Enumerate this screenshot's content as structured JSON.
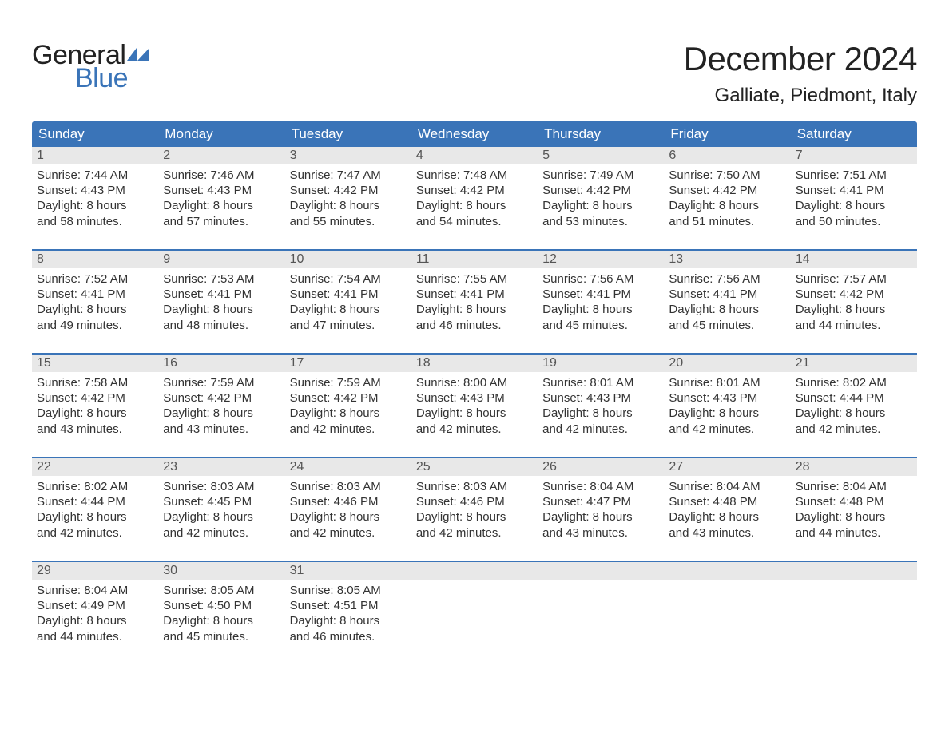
{
  "logo": {
    "line1": "General",
    "line2": "Blue",
    "color_general": "#222222",
    "color_blue": "#3a74b8",
    "icon_color": "#3a74b8"
  },
  "title": "December 2024",
  "location": "Galliate, Piedmont, Italy",
  "colors": {
    "header_bg": "#3a74b8",
    "header_text": "#ffffff",
    "daynum_bg": "#e8e8e8",
    "week_border": "#3a74b8",
    "text": "#333333"
  },
  "day_names": [
    "Sunday",
    "Monday",
    "Tuesday",
    "Wednesday",
    "Thursday",
    "Friday",
    "Saturday"
  ],
  "weeks": [
    [
      {
        "n": "1",
        "sunrise": "Sunrise: 7:44 AM",
        "sunset": "Sunset: 4:43 PM",
        "dl1": "Daylight: 8 hours",
        "dl2": "and 58 minutes."
      },
      {
        "n": "2",
        "sunrise": "Sunrise: 7:46 AM",
        "sunset": "Sunset: 4:43 PM",
        "dl1": "Daylight: 8 hours",
        "dl2": "and 57 minutes."
      },
      {
        "n": "3",
        "sunrise": "Sunrise: 7:47 AM",
        "sunset": "Sunset: 4:42 PM",
        "dl1": "Daylight: 8 hours",
        "dl2": "and 55 minutes."
      },
      {
        "n": "4",
        "sunrise": "Sunrise: 7:48 AM",
        "sunset": "Sunset: 4:42 PM",
        "dl1": "Daylight: 8 hours",
        "dl2": "and 54 minutes."
      },
      {
        "n": "5",
        "sunrise": "Sunrise: 7:49 AM",
        "sunset": "Sunset: 4:42 PM",
        "dl1": "Daylight: 8 hours",
        "dl2": "and 53 minutes."
      },
      {
        "n": "6",
        "sunrise": "Sunrise: 7:50 AM",
        "sunset": "Sunset: 4:42 PM",
        "dl1": "Daylight: 8 hours",
        "dl2": "and 51 minutes."
      },
      {
        "n": "7",
        "sunrise": "Sunrise: 7:51 AM",
        "sunset": "Sunset: 4:41 PM",
        "dl1": "Daylight: 8 hours",
        "dl2": "and 50 minutes."
      }
    ],
    [
      {
        "n": "8",
        "sunrise": "Sunrise: 7:52 AM",
        "sunset": "Sunset: 4:41 PM",
        "dl1": "Daylight: 8 hours",
        "dl2": "and 49 minutes."
      },
      {
        "n": "9",
        "sunrise": "Sunrise: 7:53 AM",
        "sunset": "Sunset: 4:41 PM",
        "dl1": "Daylight: 8 hours",
        "dl2": "and 48 minutes."
      },
      {
        "n": "10",
        "sunrise": "Sunrise: 7:54 AM",
        "sunset": "Sunset: 4:41 PM",
        "dl1": "Daylight: 8 hours",
        "dl2": "and 47 minutes."
      },
      {
        "n": "11",
        "sunrise": "Sunrise: 7:55 AM",
        "sunset": "Sunset: 4:41 PM",
        "dl1": "Daylight: 8 hours",
        "dl2": "and 46 minutes."
      },
      {
        "n": "12",
        "sunrise": "Sunrise: 7:56 AM",
        "sunset": "Sunset: 4:41 PM",
        "dl1": "Daylight: 8 hours",
        "dl2": "and 45 minutes."
      },
      {
        "n": "13",
        "sunrise": "Sunrise: 7:56 AM",
        "sunset": "Sunset: 4:41 PM",
        "dl1": "Daylight: 8 hours",
        "dl2": "and 45 minutes."
      },
      {
        "n": "14",
        "sunrise": "Sunrise: 7:57 AM",
        "sunset": "Sunset: 4:42 PM",
        "dl1": "Daylight: 8 hours",
        "dl2": "and 44 minutes."
      }
    ],
    [
      {
        "n": "15",
        "sunrise": "Sunrise: 7:58 AM",
        "sunset": "Sunset: 4:42 PM",
        "dl1": "Daylight: 8 hours",
        "dl2": "and 43 minutes."
      },
      {
        "n": "16",
        "sunrise": "Sunrise: 7:59 AM",
        "sunset": "Sunset: 4:42 PM",
        "dl1": "Daylight: 8 hours",
        "dl2": "and 43 minutes."
      },
      {
        "n": "17",
        "sunrise": "Sunrise: 7:59 AM",
        "sunset": "Sunset: 4:42 PM",
        "dl1": "Daylight: 8 hours",
        "dl2": "and 42 minutes."
      },
      {
        "n": "18",
        "sunrise": "Sunrise: 8:00 AM",
        "sunset": "Sunset: 4:43 PM",
        "dl1": "Daylight: 8 hours",
        "dl2": "and 42 minutes."
      },
      {
        "n": "19",
        "sunrise": "Sunrise: 8:01 AM",
        "sunset": "Sunset: 4:43 PM",
        "dl1": "Daylight: 8 hours",
        "dl2": "and 42 minutes."
      },
      {
        "n": "20",
        "sunrise": "Sunrise: 8:01 AM",
        "sunset": "Sunset: 4:43 PM",
        "dl1": "Daylight: 8 hours",
        "dl2": "and 42 minutes."
      },
      {
        "n": "21",
        "sunrise": "Sunrise: 8:02 AM",
        "sunset": "Sunset: 4:44 PM",
        "dl1": "Daylight: 8 hours",
        "dl2": "and 42 minutes."
      }
    ],
    [
      {
        "n": "22",
        "sunrise": "Sunrise: 8:02 AM",
        "sunset": "Sunset: 4:44 PM",
        "dl1": "Daylight: 8 hours",
        "dl2": "and 42 minutes."
      },
      {
        "n": "23",
        "sunrise": "Sunrise: 8:03 AM",
        "sunset": "Sunset: 4:45 PM",
        "dl1": "Daylight: 8 hours",
        "dl2": "and 42 minutes."
      },
      {
        "n": "24",
        "sunrise": "Sunrise: 8:03 AM",
        "sunset": "Sunset: 4:46 PM",
        "dl1": "Daylight: 8 hours",
        "dl2": "and 42 minutes."
      },
      {
        "n": "25",
        "sunrise": "Sunrise: 8:03 AM",
        "sunset": "Sunset: 4:46 PM",
        "dl1": "Daylight: 8 hours",
        "dl2": "and 42 minutes."
      },
      {
        "n": "26",
        "sunrise": "Sunrise: 8:04 AM",
        "sunset": "Sunset: 4:47 PM",
        "dl1": "Daylight: 8 hours",
        "dl2": "and 43 minutes."
      },
      {
        "n": "27",
        "sunrise": "Sunrise: 8:04 AM",
        "sunset": "Sunset: 4:48 PM",
        "dl1": "Daylight: 8 hours",
        "dl2": "and 43 minutes."
      },
      {
        "n": "28",
        "sunrise": "Sunrise: 8:04 AM",
        "sunset": "Sunset: 4:48 PM",
        "dl1": "Daylight: 8 hours",
        "dl2": "and 44 minutes."
      }
    ],
    [
      {
        "n": "29",
        "sunrise": "Sunrise: 8:04 AM",
        "sunset": "Sunset: 4:49 PM",
        "dl1": "Daylight: 8 hours",
        "dl2": "and 44 minutes."
      },
      {
        "n": "30",
        "sunrise": "Sunrise: 8:05 AM",
        "sunset": "Sunset: 4:50 PM",
        "dl1": "Daylight: 8 hours",
        "dl2": "and 45 minutes."
      },
      {
        "n": "31",
        "sunrise": "Sunrise: 8:05 AM",
        "sunset": "Sunset: 4:51 PM",
        "dl1": "Daylight: 8 hours",
        "dl2": "and 46 minutes."
      },
      {
        "empty": true
      },
      {
        "empty": true
      },
      {
        "empty": true
      },
      {
        "empty": true
      }
    ]
  ]
}
